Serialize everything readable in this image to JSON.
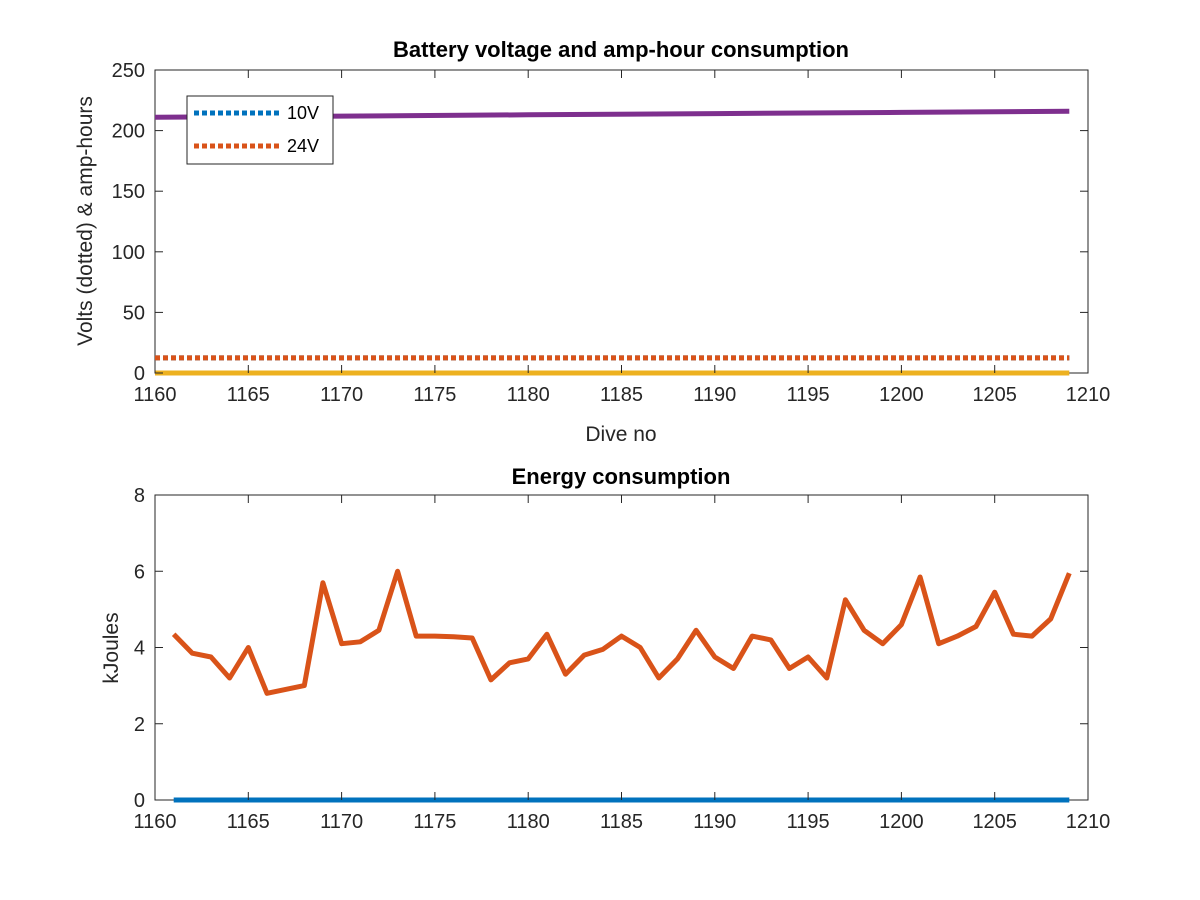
{
  "chart_data": [
    {
      "type": "line",
      "title": "Battery voltage and amp-hour consumption",
      "xlabel": "Dive no",
      "ylabel": "Volts (dotted) & amp-hours",
      "xlim": [
        1160,
        1210
      ],
      "ylim": [
        0,
        250
      ],
      "xticks": [
        1160,
        1165,
        1170,
        1175,
        1180,
        1185,
        1190,
        1195,
        1200,
        1205,
        1210
      ],
      "yticks": [
        0,
        50,
        100,
        150,
        200,
        250
      ],
      "legend": {
        "location": "top-left",
        "entries": [
          "10V",
          "24V"
        ]
      },
      "series": [
        {
          "name": "10V",
          "style": "dotted",
          "color": "#0072BD",
          "x": [
            1160,
            1209
          ],
          "y": [
            12.5,
            12.5
          ]
        },
        {
          "name": "24V",
          "style": "dotted",
          "color": "#D95319",
          "x": [
            1160,
            1209
          ],
          "y": [
            12.5,
            12.5
          ]
        },
        {
          "style": "solid",
          "color": "#EDB120",
          "x": [
            1160,
            1209
          ],
          "y": [
            0,
            0
          ]
        },
        {
          "style": "solid",
          "color": "#7E2F8E",
          "x": [
            1160,
            1170,
            1180,
            1190,
            1200,
            1209
          ],
          "y": [
            211,
            212,
            213,
            214,
            215,
            216
          ]
        }
      ]
    },
    {
      "type": "line",
      "title": "Energy consumption",
      "xlabel": "",
      "ylabel": "kJoules",
      "xlim": [
        1160,
        1210
      ],
      "ylim": [
        0,
        8
      ],
      "xticks": [
        1160,
        1165,
        1170,
        1175,
        1180,
        1185,
        1190,
        1195,
        1200,
        1205,
        1210
      ],
      "yticks": [
        0,
        2,
        4,
        6,
        8
      ],
      "series": [
        {
          "style": "solid",
          "color": "#0072BD",
          "x": [
            1161,
            1209
          ],
          "y": [
            0,
            0
          ]
        },
        {
          "style": "solid",
          "color": "#D95319",
          "x": [
            1161,
            1162,
            1163,
            1164,
            1165,
            1166,
            1167,
            1168,
            1169,
            1170,
            1171,
            1172,
            1173,
            1174,
            1175,
            1176,
            1177,
            1178,
            1179,
            1180,
            1181,
            1182,
            1183,
            1184,
            1185,
            1186,
            1187,
            1188,
            1189,
            1190,
            1191,
            1192,
            1193,
            1194,
            1195,
            1196,
            1197,
            1198,
            1199,
            1200,
            1201,
            1202,
            1203,
            1204,
            1205,
            1206,
            1207,
            1208,
            1209
          ],
          "y": [
            4.35,
            3.85,
            3.75,
            3.2,
            4.0,
            2.8,
            2.9,
            3.0,
            5.7,
            4.1,
            4.15,
            4.45,
            6.0,
            4.3,
            4.3,
            4.28,
            4.25,
            3.15,
            3.6,
            3.7,
            4.35,
            3.3,
            3.8,
            3.95,
            4.3,
            4.0,
            3.2,
            3.7,
            4.45,
            3.75,
            3.45,
            4.3,
            4.2,
            3.45,
            3.75,
            3.2,
            5.25,
            4.45,
            4.1,
            4.6,
            5.85,
            4.1,
            4.3,
            4.55,
            5.45,
            4.35,
            4.3,
            4.75,
            5.95
          ]
        }
      ]
    }
  ]
}
